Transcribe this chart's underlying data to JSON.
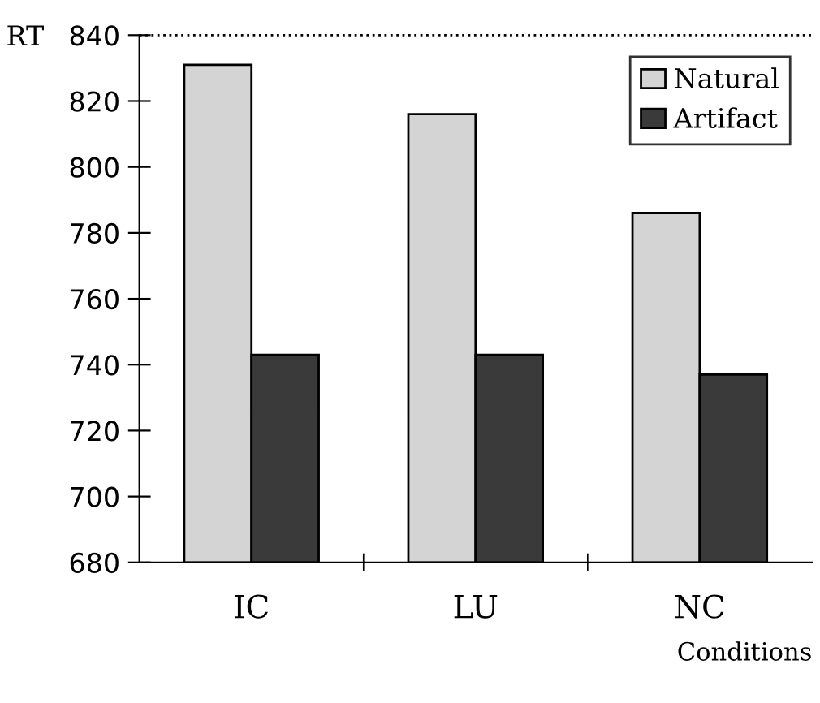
{
  "chart_data": {
    "type": "bar",
    "xlabel": "Conditions",
    "ylabel": "RT",
    "categories": [
      "IC",
      "LU",
      "NC"
    ],
    "series": [
      {
        "name": "Natural",
        "color": "#d4d4d4",
        "values": [
          831,
          816,
          786
        ]
      },
      {
        "name": "Artifact",
        "color": "#3a3a3a",
        "values": [
          743,
          743,
          737
        ]
      }
    ],
    "ylim": [
      680,
      840
    ],
    "yticks": [
      680,
      700,
      720,
      740,
      760,
      780,
      800,
      820,
      840
    ],
    "ref_lines": [
      {
        "axis": "y",
        "value": 840,
        "line_style": "dotted",
        "color": "#000000"
      }
    ],
    "legend": "top right",
    "grid": false
  }
}
